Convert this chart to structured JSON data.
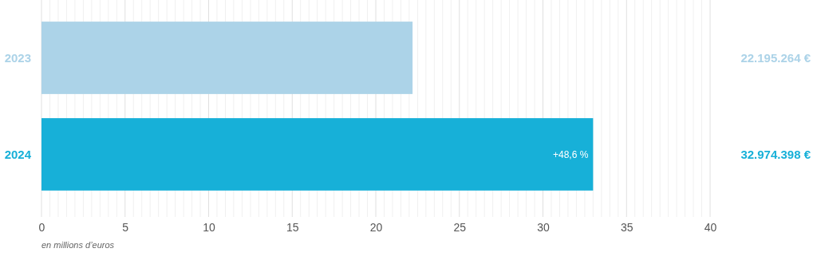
{
  "chart_data": {
    "type": "bar",
    "orientation": "horizontal",
    "categories": [
      "2023",
      "2024"
    ],
    "values": [
      22.2,
      33.0
    ],
    "colors": [
      "#acd3e8",
      "#17b0d8"
    ],
    "xlim": [
      0,
      40
    ],
    "xticks": [
      0,
      {
        "value": 0.5,
        "label": null
      },
      {
        "value": 1,
        "label": null
      },
      {
        "value": 1.5,
        "label": null
      },
      {
        "value": 2,
        "label": null
      },
      {
        "value": 2.5,
        "label": null
      },
      {
        "value": 3,
        "label": null
      },
      {
        "value": 3.5,
        "label": null
      },
      {
        "value": 4,
        "label": null
      },
      {
        "value": 4.5,
        "label": null
      },
      5,
      {
        "value": 5.5,
        "label": null
      },
      {
        "value": 6,
        "label": null
      },
      {
        "value": 6.5,
        "label": null
      },
      {
        "value": 7,
        "label": null
      },
      {
        "value": 7.5,
        "label": null
      },
      {
        "value": 8,
        "label": null
      },
      {
        "value": 8.5,
        "label": null
      },
      {
        "value": 9,
        "label": null
      },
      {
        "value": 9.5,
        "label": null
      },
      10,
      {
        "value": 10.5,
        "label": null
      },
      {
        "value": 11,
        "label": null
      },
      {
        "value": 11.5,
        "label": null
      },
      {
        "value": 12,
        "label": null
      },
      {
        "value": 12.5,
        "label": null
      },
      {
        "value": 13,
        "label": null
      },
      {
        "value": 13.5,
        "label": null
      },
      {
        "value": 14,
        "label": null
      },
      {
        "value": 14.5,
        "label": null
      },
      15,
      {
        "value": 15.5,
        "label": null
      },
      {
        "value": 16,
        "label": null
      },
      {
        "value": 16.5,
        "label": null
      },
      {
        "value": 17,
        "label": null
      },
      {
        "value": 17.5,
        "label": null
      },
      {
        "value": 18,
        "label": null
      },
      {
        "value": 18.5,
        "label": null
      },
      {
        "value": 19,
        "label": null
      },
      {
        "value": 19.5,
        "label": null
      },
      20,
      {
        "value": 20.5,
        "label": null
      },
      {
        "value": 21,
        "label": null
      },
      {
        "value": 21.5,
        "label": null
      },
      {
        "value": 22,
        "label": null
      },
      {
        "value": 22.5,
        "label": null
      },
      {
        "value": 23,
        "label": null
      },
      {
        "value": 23.5,
        "label": null
      },
      {
        "value": 24,
        "label": null
      },
      {
        "value": 24.5,
        "label": null
      },
      25,
      {
        "value": 25.5,
        "label": null
      },
      {
        "value": 26,
        "label": null
      },
      {
        "value": 26.5,
        "label": null
      },
      {
        "value": 27,
        "label": null
      },
      {
        "value": 27.5,
        "label": null
      },
      {
        "value": 28,
        "label": null
      },
      {
        "value": 28.5,
        "label": null
      },
      {
        "value": 29,
        "label": null
      },
      {
        "value": 29.5,
        "label": null
      },
      30,
      {
        "value": 30.5,
        "label": null
      },
      {
        "value": 31,
        "label": null
      },
      {
        "value": 31.5,
        "label": null
      },
      {
        "value": 32,
        "label": null
      },
      {
        "value": 32.5,
        "label": null
      },
      {
        "value": 33,
        "label": null
      },
      {
        "value": 33.5,
        "label": null
      },
      {
        "value": 34,
        "label": null
      },
      {
        "value": 34.5,
        "label": null
      },
      35,
      {
        "value": 35.5,
        "label": null
      },
      {
        "value": 36,
        "label": null
      },
      {
        "value": 36.5,
        "label": null
      },
      {
        "value": 37,
        "label": null
      },
      {
        "value": 37.5,
        "label": null
      },
      {
        "value": 38,
        "label": null
      },
      {
        "value": 38.5,
        "label": null
      },
      {
        "value": 39,
        "label": null
      },
      {
        "value": 39.5,
        "label": null
      },
      40
    ],
    "grid": "x",
    "xlabel": "en millions d’euros",
    "annotations": [
      {
        "text": "+48,6 %",
        "x": 33.0,
        "y": "2024"
      },
      "22.195.264 €",
      "32.974.398 €"
    ]
  }
}
